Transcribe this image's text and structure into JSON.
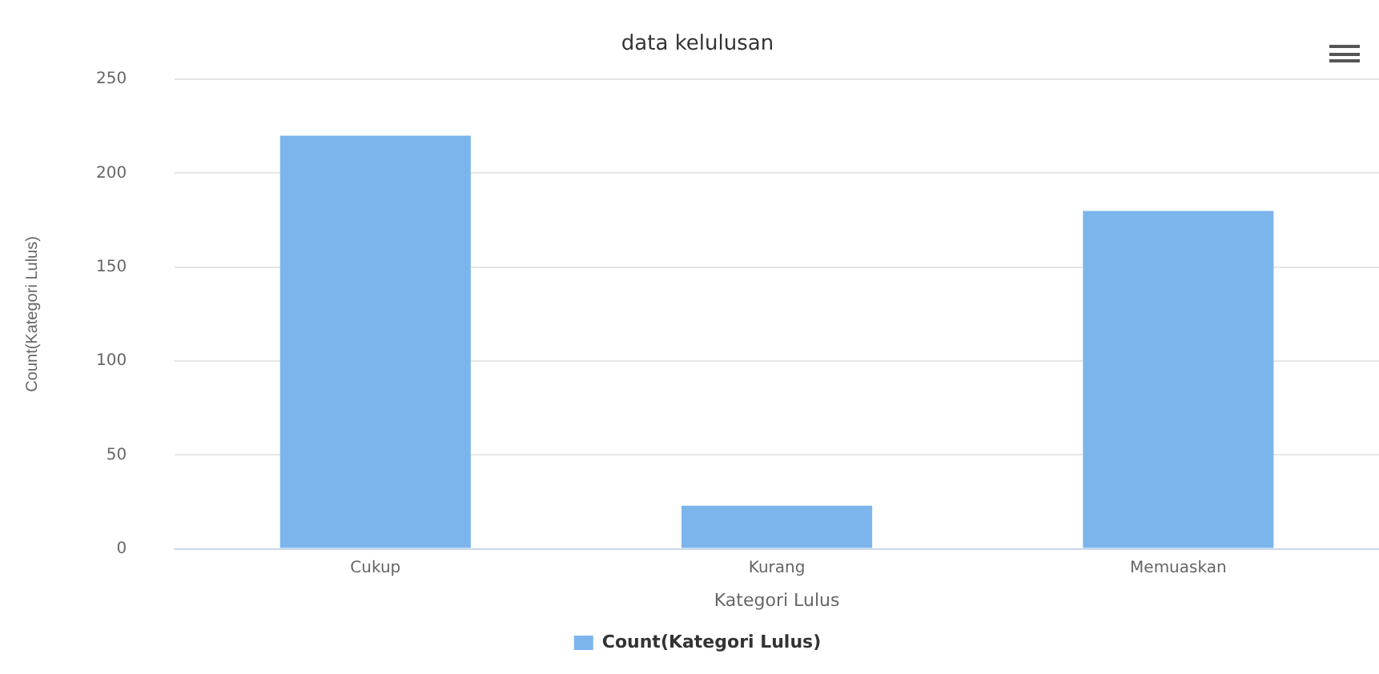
{
  "chart_data": {
    "type": "bar",
    "title": "data kelulusan",
    "xlabel": "Kategori Lulus",
    "ylabel": "Count(Kategori Lulus)",
    "categories": [
      "Cukup",
      "Kurang",
      "Memuaskan"
    ],
    "series": [
      {
        "name": "Count(Kategori Lulus)",
        "color": "#7cb5ec",
        "values": [
          220,
          23,
          180
        ]
      }
    ],
    "ylim": [
      0,
      250
    ],
    "yticks": [
      0,
      50,
      100,
      150,
      200,
      250
    ],
    "grid": "y",
    "legend": "bottom"
  }
}
